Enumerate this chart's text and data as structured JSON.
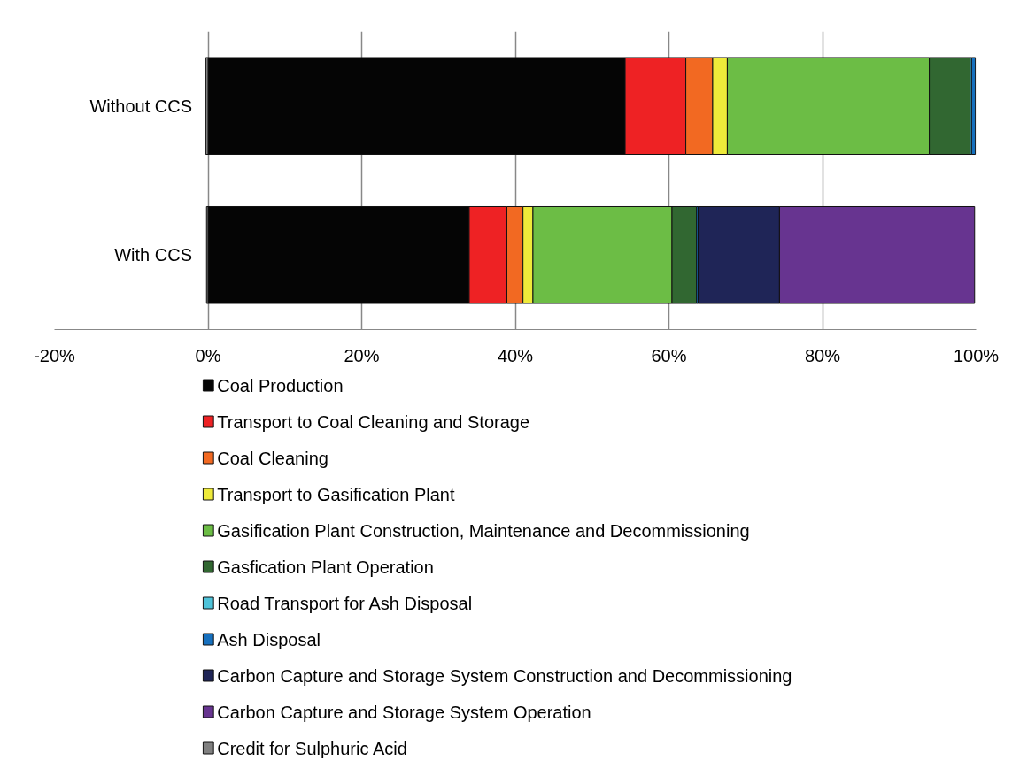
{
  "chart_data": {
    "type": "bar",
    "orientation": "horizontal",
    "stacked": true,
    "categories": [
      "Without CCS",
      "With CCS"
    ],
    "series": [
      {
        "name": "Coal Production",
        "color": "#050505",
        "values": [
          54.3,
          34.0
        ]
      },
      {
        "name": "Transport to Coal Cleaning and Storage",
        "color": "#ee2224",
        "values": [
          7.9,
          4.9
        ]
      },
      {
        "name": "Coal Cleaning",
        "color": "#f26922",
        "values": [
          3.5,
          2.1
        ]
      },
      {
        "name": "Transport to Gasification Plant",
        "color": "#eeea3a",
        "values": [
          1.9,
          1.3
        ]
      },
      {
        "name": "Gasification Plant Construction, Maintenance and Decommissioning",
        "color": "#6cbd45",
        "values": [
          26.3,
          18.1
        ]
      },
      {
        "name": "Gasfication Plant Operation",
        "color": "#316731",
        "values": [
          5.3,
          3.2
        ]
      },
      {
        "name": "Road Transport for Ash Disposal",
        "color": "#4fc3d9",
        "values": [
          0.2,
          null
        ]
      },
      {
        "name": "Ash Disposal",
        "color": "#1670be",
        "values": [
          0.5,
          0.2
        ]
      },
      {
        "name": "Carbon Capture and Storage System Construction and Decommissioning",
        "color": "#1f2557",
        "values": [
          0,
          10.6
        ]
      },
      {
        "name": "Carbon Capture and Storage System Operation",
        "color": "#673490",
        "values": [
          0,
          25.4
        ]
      },
      {
        "name": "Credit for Sulphuric Acid",
        "color": "#808080",
        "values": [
          -0.3,
          -0.2
        ]
      }
    ],
    "xlim": [
      -20,
      100
    ],
    "xticks": [
      {
        "value": -20,
        "label": "-20%"
      },
      {
        "value": 0,
        "label": "0%"
      },
      {
        "value": 20,
        "label": "20%"
      },
      {
        "value": 40,
        "label": "40%"
      },
      {
        "value": 60,
        "label": "60%"
      },
      {
        "value": 80,
        "label": "80%"
      },
      {
        "value": 100,
        "label": "100%"
      }
    ],
    "grid": "x",
    "legend": "bottom"
  }
}
